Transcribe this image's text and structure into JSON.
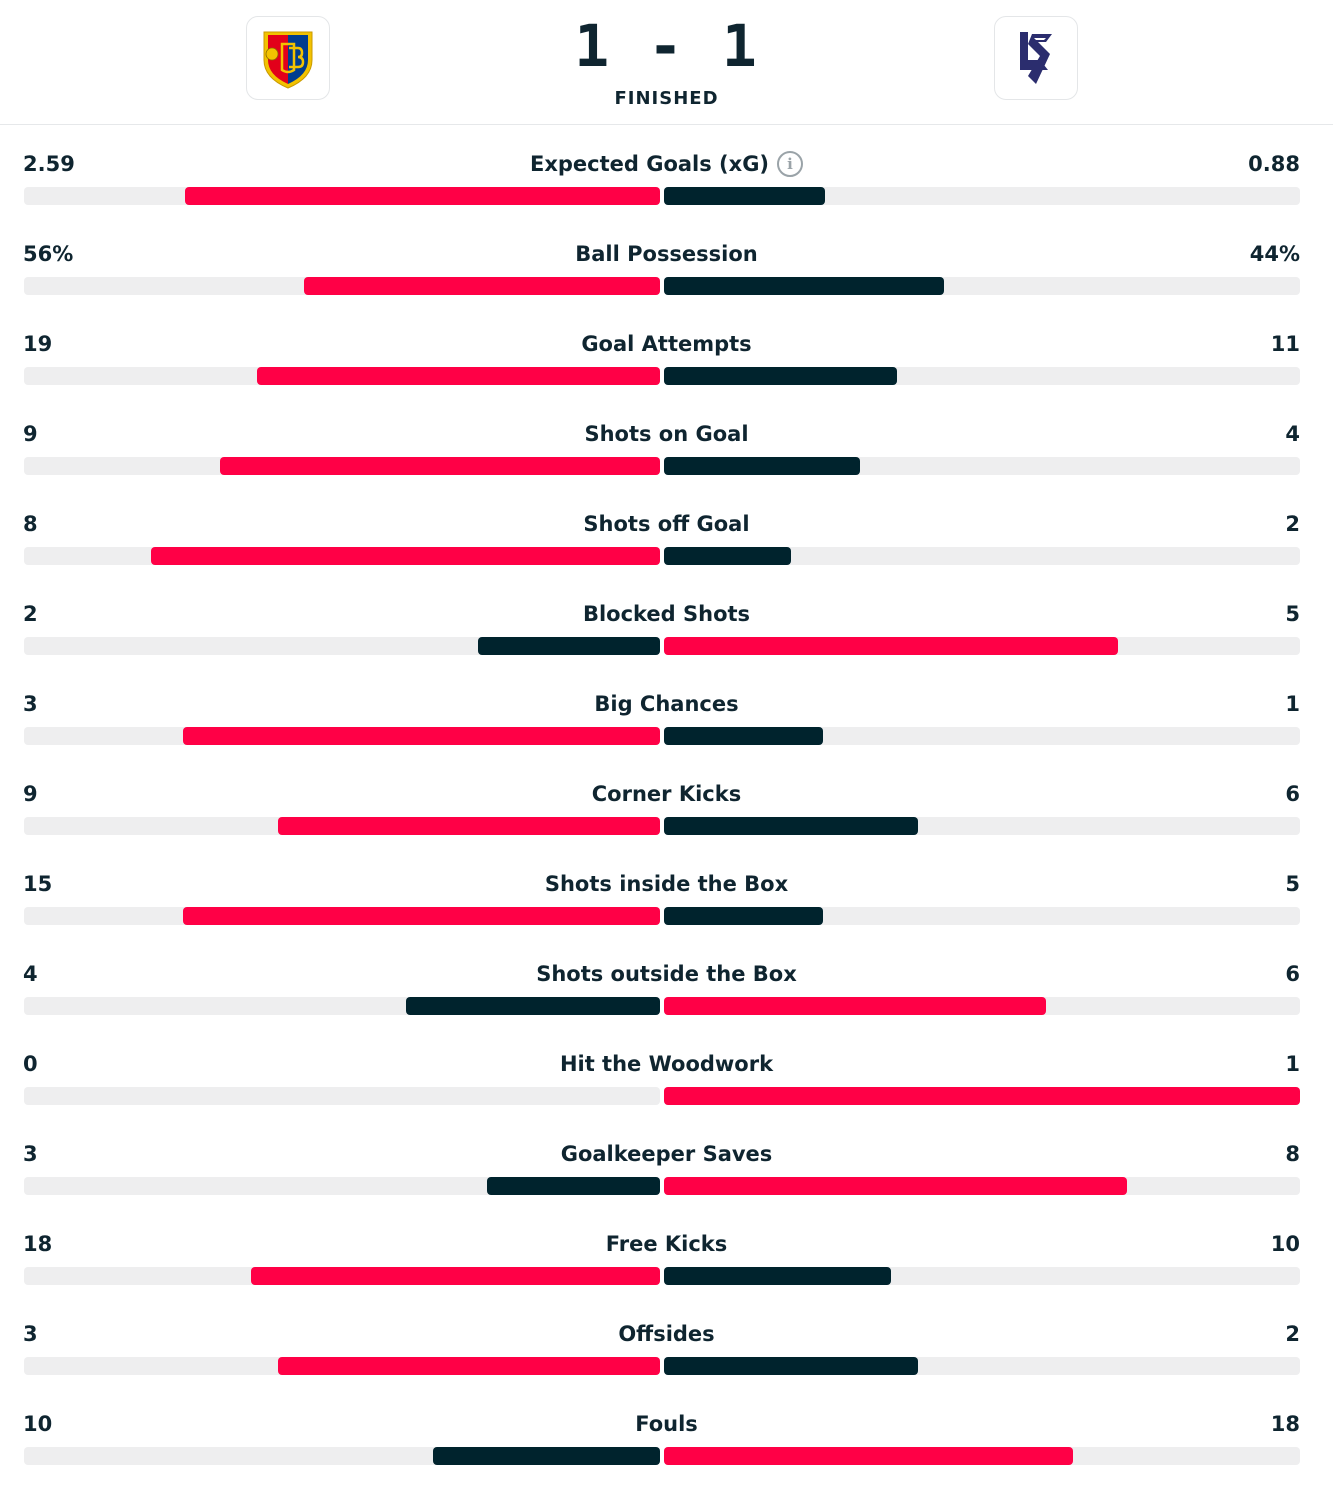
{
  "match": {
    "score": "1 - 1",
    "status": "FINISHED"
  },
  "colors": {
    "leader": "#ff0046",
    "trailer": "#00232d",
    "track": "#eeeeef"
  },
  "stats": [
    {
      "label": "Expected Goals (xG)",
      "home": "2.59",
      "away": "0.88",
      "home_value": 2.59,
      "away_value": 0.88,
      "info": true
    },
    {
      "label": "Ball Possession",
      "home": "56%",
      "away": "44%",
      "home_value": 56,
      "away_value": 44
    },
    {
      "label": "Goal Attempts",
      "home": "19",
      "away": "11",
      "home_value": 19,
      "away_value": 11
    },
    {
      "label": "Shots on Goal",
      "home": "9",
      "away": "4",
      "home_value": 9,
      "away_value": 4
    },
    {
      "label": "Shots off Goal",
      "home": "8",
      "away": "2",
      "home_value": 8,
      "away_value": 2
    },
    {
      "label": "Blocked Shots",
      "home": "2",
      "away": "5",
      "home_value": 2,
      "away_value": 5
    },
    {
      "label": "Big Chances",
      "home": "3",
      "away": "1",
      "home_value": 3,
      "away_value": 1
    },
    {
      "label": "Corner Kicks",
      "home": "9",
      "away": "6",
      "home_value": 9,
      "away_value": 6
    },
    {
      "label": "Shots inside the Box",
      "home": "15",
      "away": "5",
      "home_value": 15,
      "away_value": 5
    },
    {
      "label": "Shots outside the Box",
      "home": "4",
      "away": "6",
      "home_value": 4,
      "away_value": 6
    },
    {
      "label": "Hit the Woodwork",
      "home": "0",
      "away": "1",
      "home_value": 0,
      "away_value": 1
    },
    {
      "label": "Goalkeeper Saves",
      "home": "3",
      "away": "8",
      "home_value": 3,
      "away_value": 8
    },
    {
      "label": "Free Kicks",
      "home": "18",
      "away": "10",
      "home_value": 18,
      "away_value": 10
    },
    {
      "label": "Offsides",
      "home": "3",
      "away": "2",
      "home_value": 3,
      "away_value": 2
    },
    {
      "label": "Fouls",
      "home": "10",
      "away": "18",
      "home_value": 10,
      "away_value": 18
    }
  ]
}
